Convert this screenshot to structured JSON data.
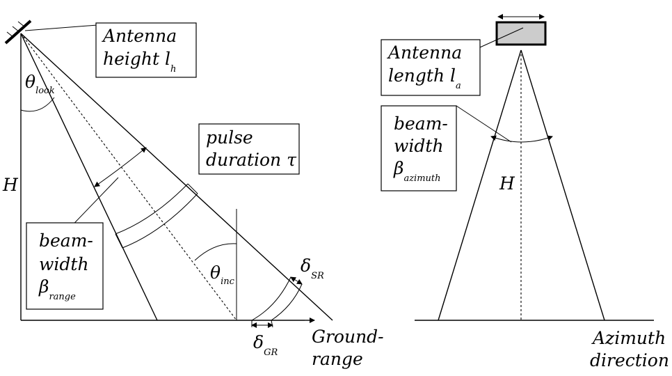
{
  "figure": "SAR side-looking imaging geometry (range and azimuth views)",
  "range_view": {
    "antenna_height": {
      "line1": "Antenna",
      "line2": "height ",
      "symbol": "l",
      "subscript": "h"
    },
    "look_angle": {
      "symbol": "θ",
      "subscript": "look"
    },
    "platform_height": "H",
    "pulse_duration": {
      "line1": "pulse",
      "line2": "duration ",
      "symbol": "τ"
    },
    "incidence_angle": {
      "symbol": "θ",
      "subscript": "inc"
    },
    "beamwidth_range": {
      "line1": "beam-",
      "line2": "width",
      "symbol": "β",
      "subscript": "range"
    },
    "slant_range_resolution": {
      "symbol": "δ",
      "subscript": "SR"
    },
    "ground_range_resolution": {
      "symbol": "δ",
      "subscript": "GR"
    },
    "ground_axis": {
      "line1": "Ground-",
      "line2": "range"
    }
  },
  "azimuth_view": {
    "antenna_length": {
      "line1": "Antenna",
      "line2": "length ",
      "symbol": "l",
      "subscript": "a"
    },
    "beamwidth_azimuth": {
      "line1": "beam-",
      "line2": "width",
      "symbol": "β",
      "subscript": "azimuth"
    },
    "platform_height": "H",
    "azimuth_axis": {
      "line1": "Azimuth",
      "line2": "direction"
    }
  }
}
